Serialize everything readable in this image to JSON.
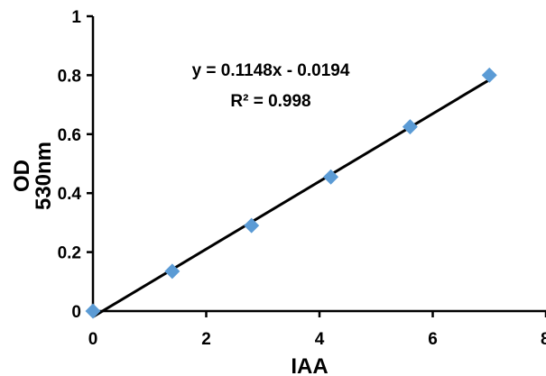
{
  "chart_data": {
    "type": "scatter",
    "title": "",
    "xlabel": "IAA",
    "ylabel_lines": [
      "OD",
      "530nm"
    ],
    "xlim": [
      0,
      8
    ],
    "ylim": [
      0,
      1
    ],
    "xticks": [
      "0",
      "2",
      "4",
      "6",
      "8"
    ],
    "yticks": [
      "0",
      "0.2",
      "0.4",
      "0.6",
      "0.8",
      "1"
    ],
    "grid": false,
    "legend": "none",
    "marker": "diamond",
    "marker_color": "#5b9bd5",
    "trendline_color": "#000000",
    "points": [
      {
        "x": 0,
        "y": 0
      },
      {
        "x": 1.4,
        "y": 0.135
      },
      {
        "x": 2.8,
        "y": 0.29
      },
      {
        "x": 4.2,
        "y": 0.455
      },
      {
        "x": 5.6,
        "y": 0.625
      },
      {
        "x": 7.0,
        "y": 0.8
      }
    ],
    "trendline": {
      "slope": 0.1148,
      "intercept": -0.0194,
      "x_range": [
        0,
        7
      ]
    },
    "equation": "y = 0.1148x - 0.0194",
    "r_squared": "R² = 0.998"
  }
}
